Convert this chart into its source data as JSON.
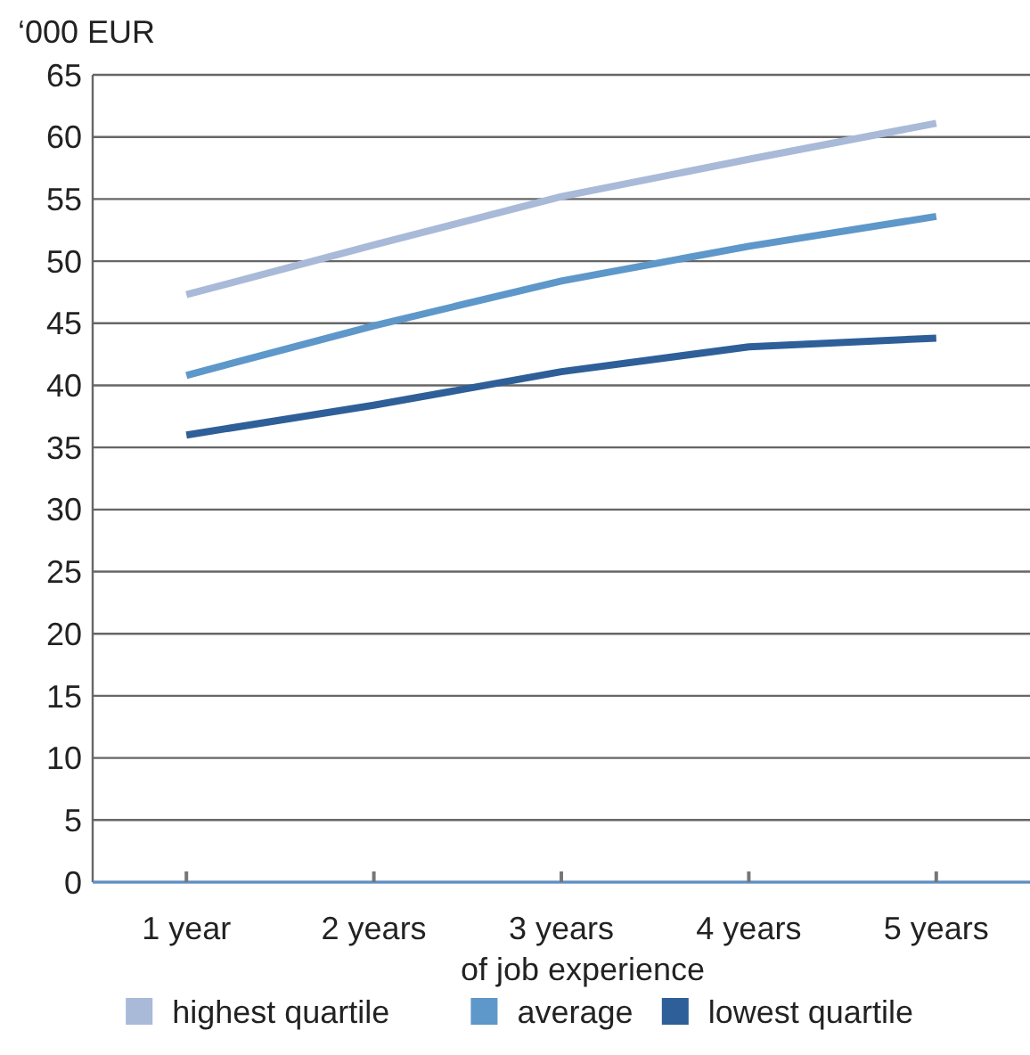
{
  "chart_data": {
    "type": "line",
    "ylabel": "‘000 EUR",
    "xlabel": "of job experience",
    "categories": [
      "1 year",
      "2 years",
      "3 years",
      "4 years",
      "5 years"
    ],
    "series": [
      {
        "name": "highest quartile",
        "color": "#a9b9d8",
        "values": [
          47.3,
          51.3,
          55.2,
          58.2,
          61.1
        ]
      },
      {
        "name": "average",
        "color": "#5e97c9",
        "values": [
          40.8,
          44.8,
          48.4,
          51.2,
          53.6
        ]
      },
      {
        "name": "lowest quartile",
        "color": "#2e5f98",
        "values": [
          36.0,
          38.4,
          41.1,
          43.1,
          43.8
        ]
      }
    ],
    "ylim": [
      0,
      65
    ],
    "yticks": [
      0,
      5,
      10,
      15,
      20,
      25,
      30,
      35,
      40,
      45,
      50,
      55,
      60,
      65
    ],
    "grid": "y",
    "legend": "bottom",
    "marker": "none",
    "line_style": "solid"
  }
}
